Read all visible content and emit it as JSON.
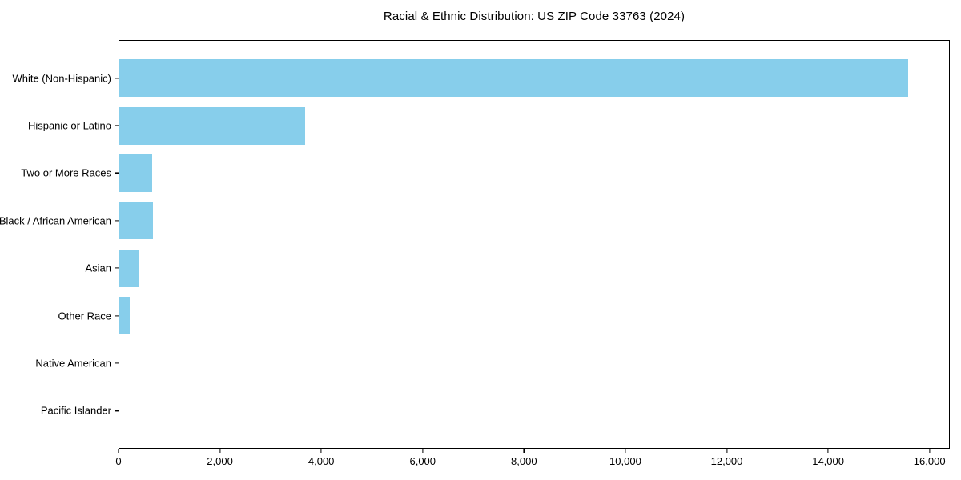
{
  "title": "Racial & Ethnic Distribution: US ZIP Code 33763 (2024)",
  "colors": {
    "bar": "#87CEEB",
    "axis": "#000000",
    "text": "#000000",
    "background": "#FFFFFF"
  },
  "chart_data": {
    "type": "bar",
    "orientation": "horizontal",
    "title": "Racial & Ethnic Distribution: US ZIP Code 33763 (2024)",
    "categories": [
      "White (Non-Hispanic)",
      "Hispanic or Latino",
      "Two or More Races",
      "Black / African American",
      "Asian",
      "Other Race",
      "Native American",
      "Pacific Islander"
    ],
    "values": [
      15600,
      3670,
      645,
      665,
      375,
      210,
      0,
      0
    ],
    "xlabel": "",
    "ylabel": "",
    "xlim": [
      0,
      16400
    ],
    "xticks": [
      0,
      2000,
      4000,
      6000,
      8000,
      10000,
      12000,
      14000,
      16000
    ],
    "xtick_labels": [
      "0",
      "2,000",
      "4,000",
      "6,000",
      "8,000",
      "10,000",
      "12,000",
      "14,000",
      "16,000"
    ],
    "grid": false,
    "legend": null,
    "bar_color": "#87CEEB",
    "frame": "full-box"
  }
}
